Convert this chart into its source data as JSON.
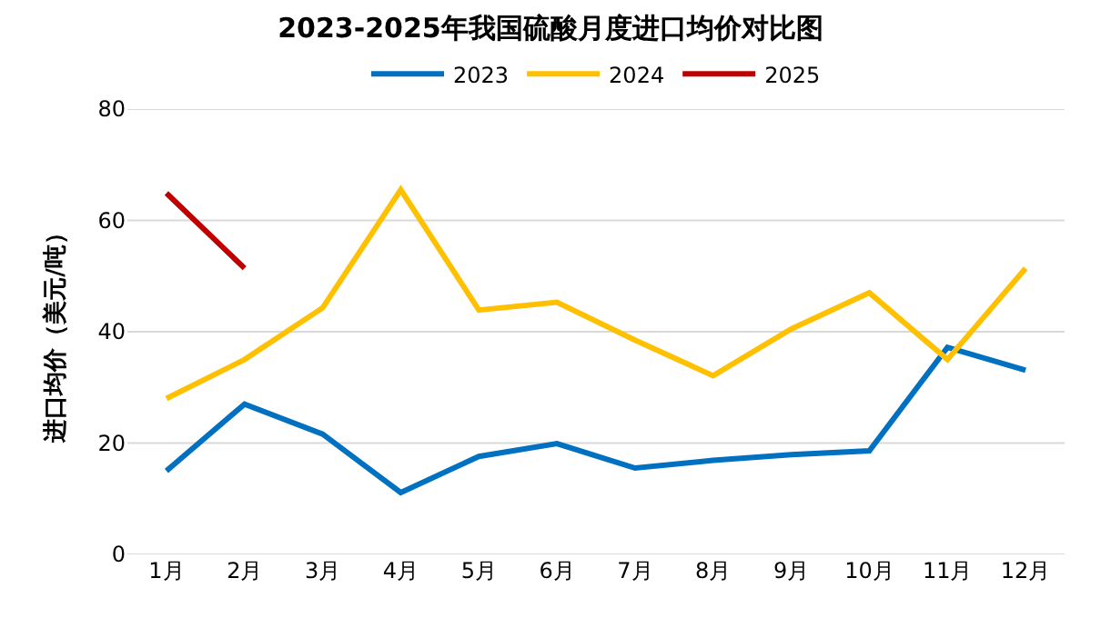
{
  "chart_data": {
    "type": "line",
    "title": "2023-2025年我国硫酸月度进口均价对比图",
    "ylabel": "进口均价（美元/吨）",
    "categories": [
      "1月",
      "2月",
      "3月",
      "4月",
      "5月",
      "6月",
      "7月",
      "8月",
      "9月",
      "10月",
      "11月",
      "12月"
    ],
    "series": [
      {
        "name": "2023",
        "color": "#0070c0",
        "values": [
          15,
          27,
          21.6,
          11.1,
          17.6,
          19.9,
          15.5,
          16.9,
          17.9,
          18.6,
          37.2,
          33.1
        ]
      },
      {
        "name": "2024",
        "color": "#ffc000",
        "values": [
          28,
          35,
          44.3,
          65.5,
          43.9,
          45.3,
          38.5,
          32.1,
          40.5,
          47,
          35,
          51.4
        ]
      },
      {
        "name": "2025",
        "color": "#c00000",
        "values": [
          64.9,
          51.4,
          null,
          null,
          null,
          null,
          null,
          null,
          null,
          null,
          null,
          null
        ]
      }
    ],
    "ylim": [
      0,
      80
    ],
    "yticks": [
      0,
      20,
      40,
      60,
      80
    ],
    "grid": "y",
    "legend": "top",
    "marker": "none",
    "line_style": "solid"
  }
}
